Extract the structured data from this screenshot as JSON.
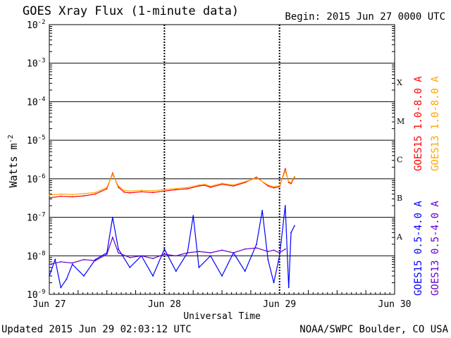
{
  "header": {
    "title": "GOES Xray Flux (1-minute data)",
    "begin": "Begin:  2015 Jun 27 0000 UTC"
  },
  "footer": {
    "updated": "Updated 2015 Jun 29 02:03:12 UTC",
    "credit": "NOAA/SWPC Boulder, CO USA"
  },
  "chart_data": {
    "type": "line",
    "title": "GOES Xray Flux (1-minute data)",
    "xlabel": "Universal Time",
    "ylabel": "Watts m",
    "ylabel_sup": "-2",
    "y_scale": "log",
    "ylim": [
      1e-09,
      0.01
    ],
    "xlim": [
      0,
      3
    ],
    "x_tick_labels": [
      "Jun 27",
      "Jun 28",
      "Jun 29",
      "Jun 30"
    ],
    "y_ticks": [
      {
        "base": "10",
        "exp": "-9"
      },
      {
        "base": "10",
        "exp": "-8"
      },
      {
        "base": "10",
        "exp": "-7"
      },
      {
        "base": "10",
        "exp": "-6"
      },
      {
        "base": "10",
        "exp": "-5"
      },
      {
        "base": "10",
        "exp": "-4"
      },
      {
        "base": "10",
        "exp": "-3"
      },
      {
        "base": "10",
        "exp": "-2"
      }
    ],
    "flare_classes": [
      {
        "label": "A",
        "exp": -8
      },
      {
        "label": "B",
        "exp": -7
      },
      {
        "label": "C",
        "exp": -6
      },
      {
        "label": "M",
        "exp": -5
      },
      {
        "label": "X",
        "exp": -4
      }
    ],
    "grid": true,
    "series": [
      {
        "name": "GOES15 1.0-8.0 A",
        "color": "#ff0000",
        "x": [
          0.0,
          0.1,
          0.2,
          0.3,
          0.4,
          0.5,
          0.55,
          0.6,
          0.65,
          0.7,
          0.8,
          0.9,
          1.0,
          1.1,
          1.2,
          1.3,
          1.35,
          1.4,
          1.5,
          1.6,
          1.7,
          1.8,
          1.9,
          1.95,
          2.0,
          2.05,
          2.08,
          2.1,
          2.13
        ],
        "y": [
          3.2e-07,
          3.5e-07,
          3.4e-07,
          3.6e-07,
          4e-07,
          5.5e-07,
          1.4e-06,
          6e-07,
          4.5e-07,
          4.3e-07,
          4.6e-07,
          4.4e-07,
          4.8e-07,
          5.2e-07,
          5.5e-07,
          6.5e-07,
          6.8e-07,
          6e-07,
          7.2e-07,
          6.5e-07,
          8e-07,
          1.1e-06,
          6.5e-07,
          5.8e-07,
          6.2e-07,
          1.8e-06,
          8e-07,
          7.5e-07,
          1.1e-06
        ]
      },
      {
        "name": "GOES13 1.0-8.0 A",
        "color": "#ffa500",
        "x": [
          0.0,
          0.1,
          0.2,
          0.3,
          0.4,
          0.5,
          0.55,
          0.6,
          0.65,
          0.7,
          0.8,
          0.9,
          1.0,
          1.1,
          1.2,
          1.3,
          1.35,
          1.4,
          1.5,
          1.6,
          1.7,
          1.8,
          1.9,
          1.95,
          2.0,
          2.05,
          2.08,
          2.1,
          2.13
        ],
        "y": [
          3.8e-07,
          4e-07,
          3.9e-07,
          4.1e-07,
          4.4e-07,
          6e-07,
          1.3e-06,
          6.5e-07,
          5e-07,
          4.8e-07,
          5e-07,
          4.9e-07,
          5.2e-07,
          5.6e-07,
          5.9e-07,
          6.9e-07,
          7.2e-07,
          6.4e-07,
          7.6e-07,
          6.9e-07,
          8.4e-07,
          1.05e-06,
          6.9e-07,
          6.2e-07,
          6.6e-07,
          1.6e-06,
          8.4e-07,
          8e-07,
          1.15e-06
        ]
      },
      {
        "name": "GOES15 0.5-4.0 A",
        "color": "#0000ff",
        "x": [
          0.0,
          0.05,
          0.1,
          0.15,
          0.2,
          0.3,
          0.4,
          0.5,
          0.55,
          0.6,
          0.7,
          0.8,
          0.9,
          1.0,
          1.1,
          1.2,
          1.25,
          1.3,
          1.4,
          1.5,
          1.6,
          1.7,
          1.8,
          1.85,
          1.9,
          1.95,
          2.0,
          2.05,
          2.08,
          2.1,
          2.13
        ],
        "y": [
          3e-09,
          8e-09,
          1.5e-09,
          2.5e-09,
          6e-09,
          3e-09,
          8e-09,
          1.2e-08,
          1e-07,
          1.5e-08,
          5e-09,
          1e-08,
          3e-09,
          1.5e-08,
          4e-09,
          1.2e-08,
          1.1e-07,
          5e-09,
          1e-08,
          3e-09,
          1.2e-08,
          4e-09,
          2e-08,
          1.5e-07,
          8e-09,
          2e-09,
          1e-08,
          2e-07,
          1.5e-09,
          4e-08,
          6e-08
        ]
      },
      {
        "name": "GOES13 0.5-4.0 A",
        "color": "#6600cc",
        "x": [
          0.0,
          0.1,
          0.2,
          0.3,
          0.4,
          0.5,
          0.55,
          0.6,
          0.7,
          0.8,
          0.9,
          1.0,
          1.1,
          1.2,
          1.3,
          1.4,
          1.5,
          1.6,
          1.7,
          1.8,
          1.9,
          1.95,
          2.0,
          2.05
        ],
        "y": [
          6e-09,
          7e-09,
          6.5e-09,
          8e-09,
          7.5e-09,
          1.1e-08,
          3e-08,
          1.2e-08,
          9e-09,
          1e-08,
          8.5e-09,
          1.1e-08,
          1e-08,
          1.2e-08,
          1.3e-08,
          1.2e-08,
          1.4e-08,
          1.2e-08,
          1.5e-08,
          1.6e-08,
          1.3e-08,
          1.4e-08,
          1.2e-08,
          1.5e-08
        ]
      }
    ]
  }
}
